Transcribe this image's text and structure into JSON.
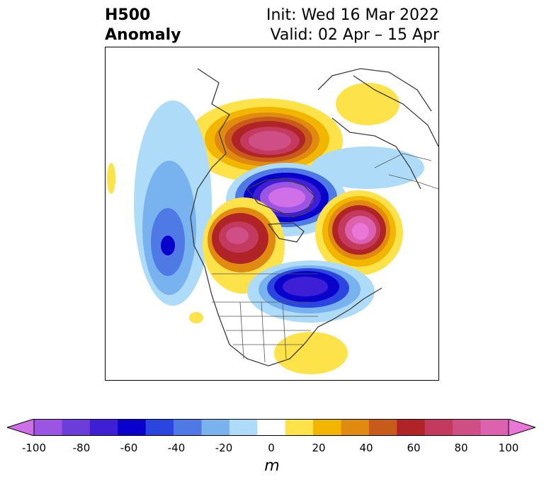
{
  "title": {
    "left_line1": "H500",
    "left_line2": "Anomaly",
    "right_line1": "Init: Wed 16 Mar 2022",
    "right_line2": "Valid: 02 Apr – 15 Apr"
  },
  "colorbar": {
    "unit": "m",
    "range": [
      -100,
      100
    ],
    "ticks": [
      "-100",
      "-80",
      "-60",
      "-40",
      "-20",
      "0",
      "20",
      "40",
      "60",
      "80",
      "100"
    ],
    "colors": [
      "#d070e8",
      "#9c55e2",
      "#6d3ddb",
      "#3e1fd5",
      "#0a00cc",
      "#2b46e0",
      "#4f7ae6",
      "#79b3ef",
      "#aedcf8",
      "#ffffff",
      "#fde24a",
      "#f2b600",
      "#e08a10",
      "#c85a1a",
      "#b02428",
      "#c43a5e",
      "#cf4e85",
      "#dc62b0",
      "#ea76d8"
    ]
  },
  "map": {
    "field": "500 hPa geopotential height anomaly",
    "region": "North America / Arctic, polar projection"
  }
}
